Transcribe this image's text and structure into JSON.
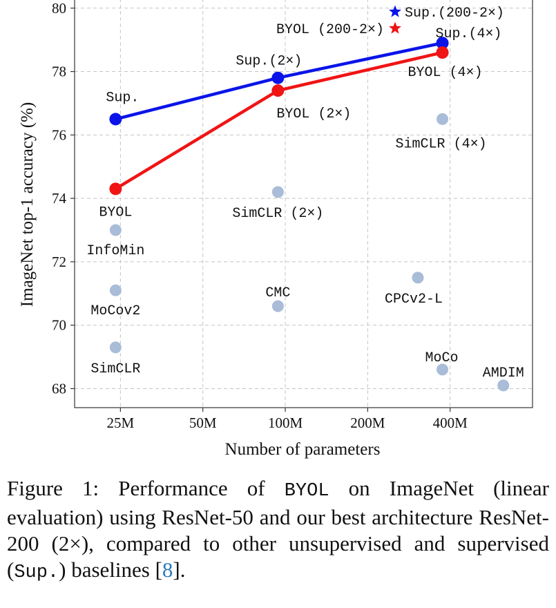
{
  "chart_data": {
    "type": "scatter",
    "xlabel": "Number of parameters",
    "ylabel": "ImageNet top-1 accuracy (%)",
    "x_scale": "log",
    "x_ticks": [
      25,
      50,
      100,
      200,
      400
    ],
    "x_tick_labels": [
      "25M",
      "50M",
      "100M",
      "200M",
      "400M"
    ],
    "y_ticks": [
      68,
      70,
      72,
      74,
      76,
      78,
      80
    ],
    "y_tick_labels": [
      "68",
      "70",
      "72",
      "74",
      "76",
      "78",
      "80"
    ],
    "ylim": [
      67.4,
      80.3
    ],
    "xlim": [
      17,
      800
    ],
    "grid": true,
    "series": [
      {
        "name": "Sup.",
        "color": "#0a14e8",
        "points": [
          {
            "label": "Sup.",
            "x": 24,
            "y": 76.5
          },
          {
            "label": "Sup.(2×)",
            "x": 94,
            "y": 77.8
          },
          {
            "label": "Sup.(4×)",
            "x": 375,
            "y": 78.9
          }
        ]
      },
      {
        "name": "BYOL",
        "color": "#f01414",
        "points": [
          {
            "label": "BYOL",
            "x": 24,
            "y": 74.3
          },
          {
            "label": "BYOL (2×)",
            "x": 94,
            "y": 77.4
          },
          {
            "label": "BYOL (4×)",
            "x": 375,
            "y": 78.6
          }
        ]
      }
    ],
    "baselines": {
      "color": "#a9bcd8",
      "points": [
        {
          "label": "InfoMin",
          "x": 24,
          "y": 73.0
        },
        {
          "label": "MoCov2",
          "x": 24,
          "y": 71.1
        },
        {
          "label": "SimCLR",
          "x": 24,
          "y": 69.3
        },
        {
          "label": "SimCLR (2×)",
          "x": 94,
          "y": 74.2
        },
        {
          "label": "CMC",
          "x": 94,
          "y": 70.6
        },
        {
          "label": "SimCLR (4×)",
          "x": 375,
          "y": 76.5
        },
        {
          "label": "CPCv2-L",
          "x": 305,
          "y": 71.5
        },
        {
          "label": "MoCo",
          "x": 375,
          "y": 68.6
        },
        {
          "label": "AMDIM",
          "x": 626,
          "y": 68.1
        }
      ]
    },
    "legend": [
      {
        "label": "Sup.(200-2×)",
        "color": "#0a14e8",
        "marker": "star"
      },
      {
        "label": "BYOL (200-2×)",
        "color": "#f01414",
        "marker": "star"
      }
    ]
  },
  "caption": {
    "part1": "Figure 1: Performance of ",
    "byol": "BYOL",
    "part2": " on ImageNet (linear evaluation) using ResNet-50 and our best architecture ResNet-200 (2×), compared to other unsupervised and supervised (",
    "sup": "Sup.",
    "part3": ") baselines [",
    "ref": "8",
    "part4": "]."
  }
}
